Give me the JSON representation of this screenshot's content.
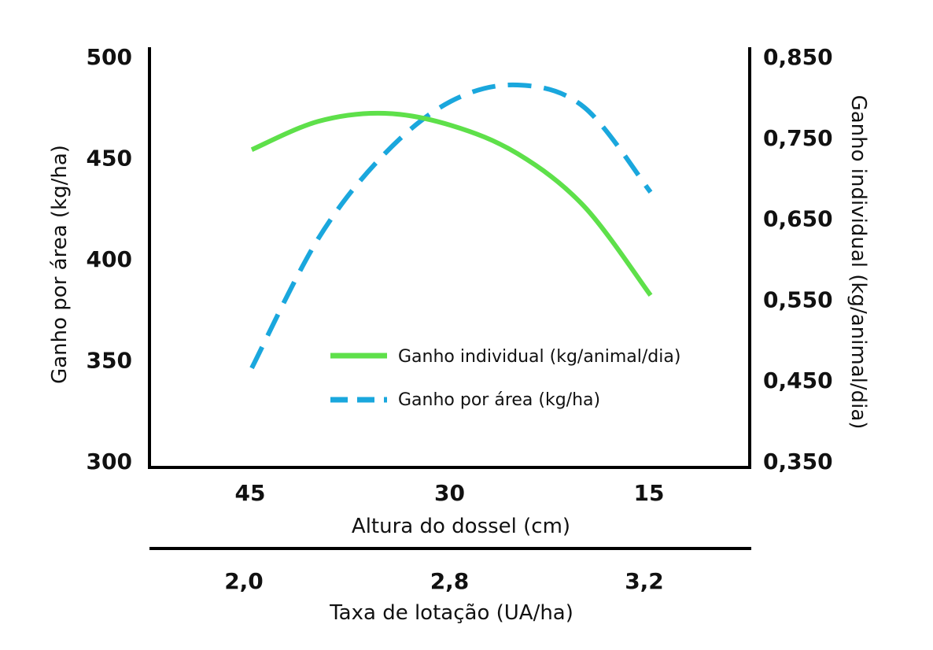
{
  "chart_data": {
    "type": "line",
    "x": [
      45,
      40,
      35,
      30,
      25,
      20,
      15
    ],
    "x_ticks": [
      "45",
      "30",
      "15"
    ],
    "xlabel": "Altura do dossel (cm)",
    "secondary_x": {
      "label": "Taxa de lotação (UA/ha)",
      "ticks": [
        "2,0",
        "2,8",
        "3,2"
      ]
    },
    "y_left": {
      "label": "Ganho por área (kg/ha)",
      "ylim": [
        300,
        500
      ],
      "ticks": [
        "300",
        "350",
        "400",
        "450",
        "500"
      ]
    },
    "y_right": {
      "label": "Ganho individual (kg/animal/dia)",
      "ylim": [
        0.35,
        0.85
      ],
      "ticks": [
        "0,350",
        "0,450",
        "0,550",
        "0,650",
        "0,750",
        "0,850"
      ]
    },
    "series": [
      {
        "name": "Ganho individual (kg/animal/dia)",
        "axis": "right",
        "style": "solid",
        "color": "#5ee04a",
        "values": [
          0.735,
          0.77,
          0.78,
          0.765,
          0.73,
          0.665,
          0.555
        ]
      },
      {
        "name": "Ganho por área (kg/ha)",
        "axis": "left",
        "style": "dashed",
        "color": "#1aa7dd",
        "values": [
          346,
          410,
          452,
          478,
          486,
          475,
          433
        ]
      }
    ],
    "legend_position": "inside-bottom-right",
    "grid": false
  }
}
